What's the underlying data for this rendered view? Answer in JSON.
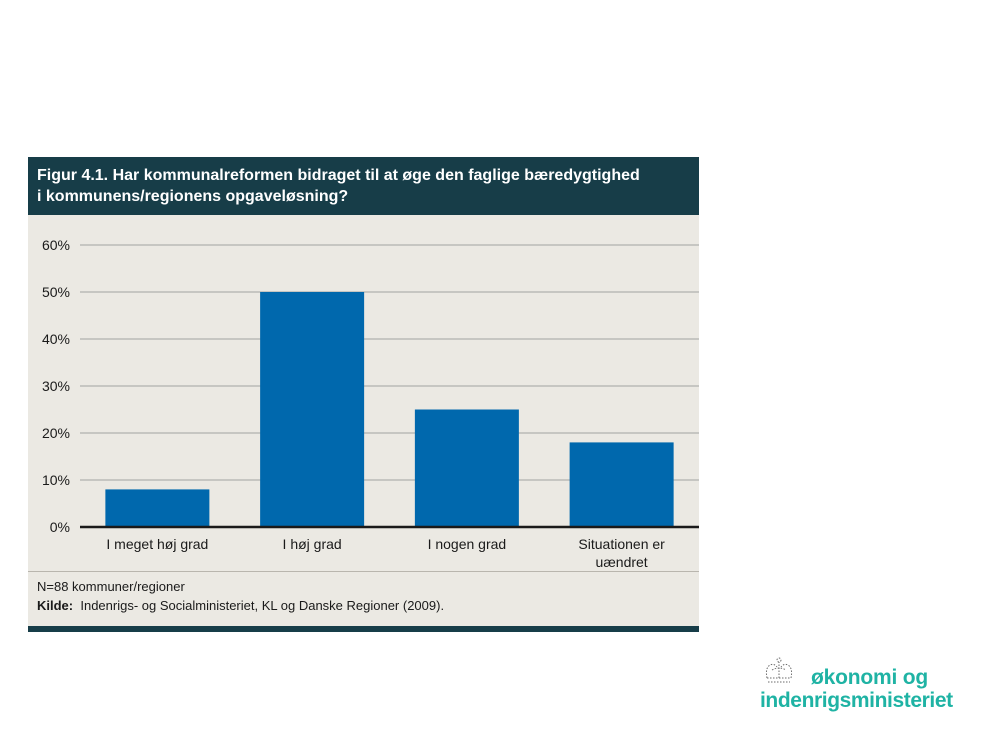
{
  "figure": {
    "title_line1": "Figur 4.1. Har kommunalreformen bidraget til at øge den faglige bæredygtighed",
    "title_line2": "i kommunens/regionens opgaveløsning?",
    "note": "N=88 kommuner/regioner",
    "source_label": "Kilde:",
    "source_text": "Indenrigs- og Socialministeriet, KL og Danske Regioner (2009)."
  },
  "chart_data": {
    "type": "bar",
    "categories": [
      [
        "I meget høj grad"
      ],
      [
        "I høj grad"
      ],
      [
        "I nogen grad"
      ],
      [
        "Situationen er",
        "uændret"
      ]
    ],
    "values": [
      8,
      50,
      25,
      18
    ],
    "unit": "%",
    "ylim": [
      0,
      60
    ],
    "yticks": [
      0,
      10,
      20,
      30,
      40,
      50,
      60
    ],
    "ytick_labels": [
      "0%",
      "10%",
      "20%",
      "30%",
      "40%",
      "50%",
      "60%"
    ],
    "grid": true,
    "bar_color": "#0068ad",
    "title": "",
    "xlabel": "",
    "ylabel": ""
  },
  "logo": {
    "line1": "økonomi og",
    "line2": "indenrigsministeriet",
    "color": "#1fb3a4"
  }
}
